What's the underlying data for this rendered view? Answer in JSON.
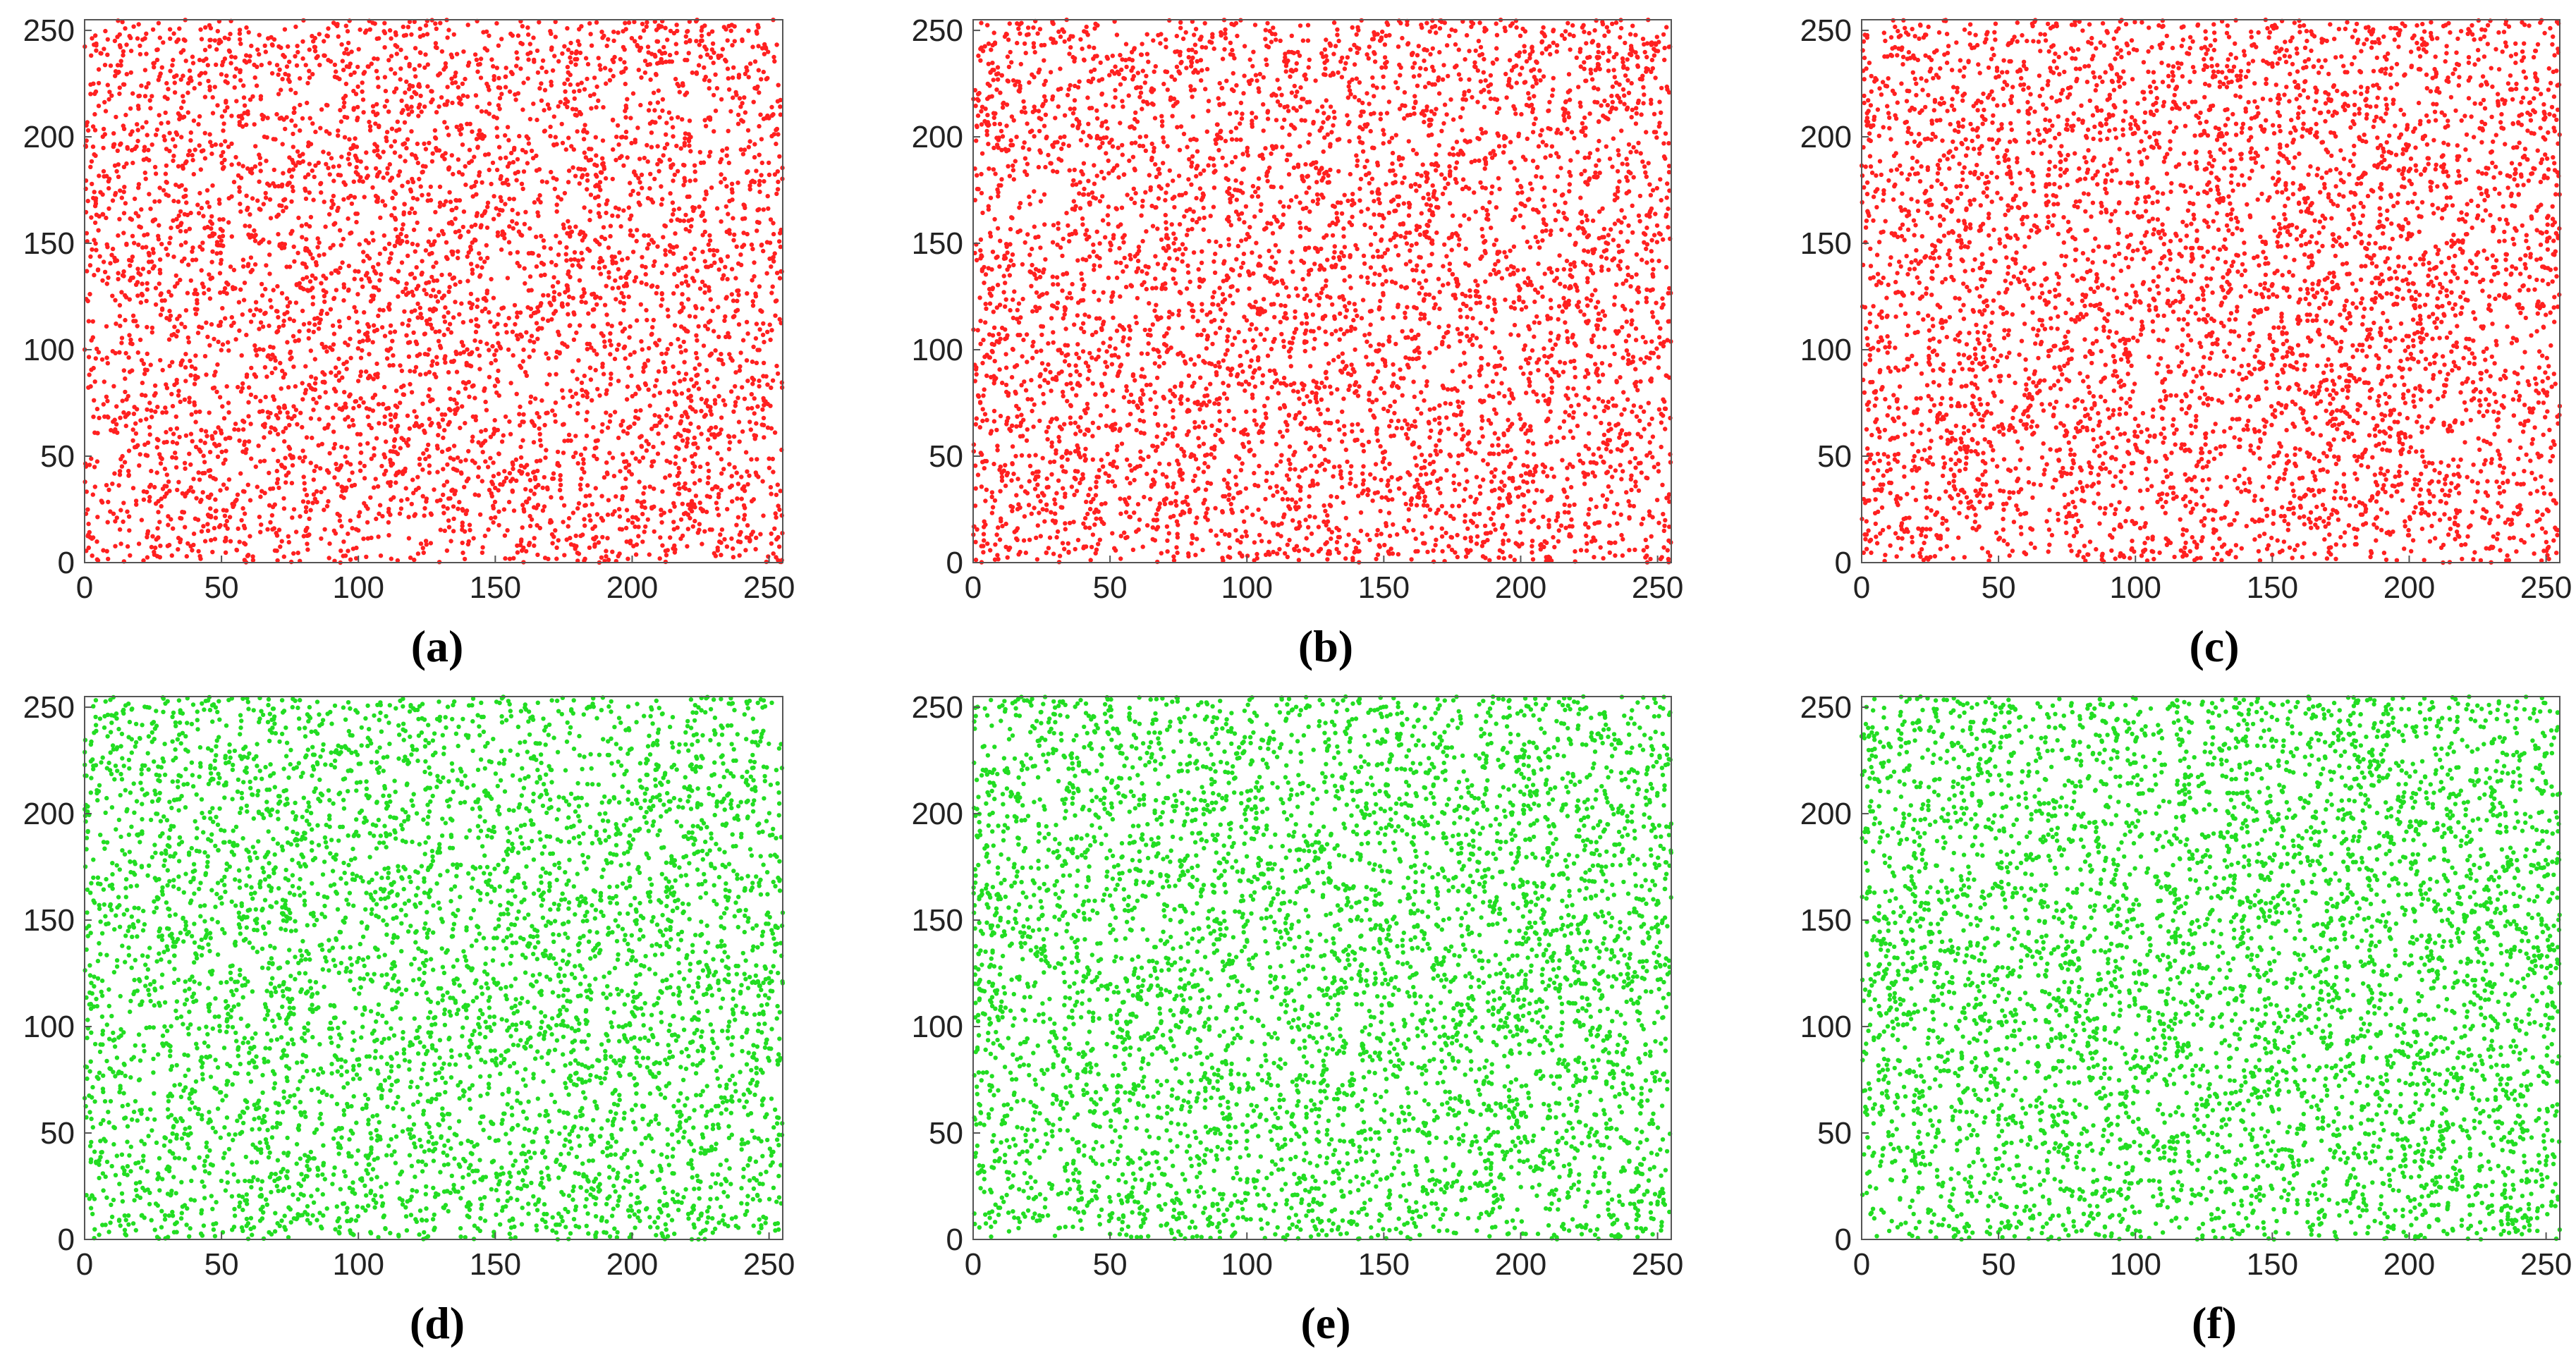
{
  "chart_data": [
    {
      "type": "scatter",
      "panel_label": "(a)",
      "point_color": "#ff2020",
      "n_points": 5000,
      "seed": 11,
      "xlim": [
        0,
        255
      ],
      "ylim": [
        0,
        255
      ],
      "xticks": [
        0,
        50,
        100,
        150,
        200,
        250
      ],
      "yticks": [
        0,
        50,
        100,
        150,
        200,
        250
      ],
      "title": "",
      "xlabel": "",
      "ylabel": "",
      "grid": false
    },
    {
      "type": "scatter",
      "panel_label": "(b)",
      "point_color": "#ff2020",
      "n_points": 5000,
      "seed": 23,
      "xlim": [
        0,
        255
      ],
      "ylim": [
        0,
        255
      ],
      "xticks": [
        0,
        50,
        100,
        150,
        200,
        250
      ],
      "yticks": [
        0,
        50,
        100,
        150,
        200,
        250
      ],
      "title": "",
      "xlabel": "",
      "ylabel": "",
      "grid": false
    },
    {
      "type": "scatter",
      "panel_label": "(c)",
      "point_color": "#ff2020",
      "n_points": 5000,
      "seed": 37,
      "xlim": [
        0,
        255
      ],
      "ylim": [
        0,
        255
      ],
      "xticks": [
        0,
        50,
        100,
        150,
        200,
        250
      ],
      "yticks": [
        0,
        50,
        100,
        150,
        200,
        250
      ],
      "title": "",
      "xlabel": "",
      "ylabel": "",
      "grid": false
    },
    {
      "type": "scatter",
      "panel_label": "(d)",
      "point_color": "#22dd22",
      "n_points": 5000,
      "seed": 41,
      "xlim": [
        0,
        255
      ],
      "ylim": [
        0,
        255
      ],
      "xticks": [
        0,
        50,
        100,
        150,
        200,
        250
      ],
      "yticks": [
        0,
        50,
        100,
        150,
        200,
        250
      ],
      "title": "",
      "xlabel": "",
      "ylabel": "",
      "grid": false
    },
    {
      "type": "scatter",
      "panel_label": "(e)",
      "point_color": "#22dd22",
      "n_points": 5000,
      "seed": 53,
      "xlim": [
        0,
        255
      ],
      "ylim": [
        0,
        255
      ],
      "xticks": [
        0,
        50,
        100,
        150,
        200,
        250
      ],
      "yticks": [
        0,
        50,
        100,
        150,
        200,
        250
      ],
      "title": "",
      "xlabel": "",
      "ylabel": "",
      "grid": false
    },
    {
      "type": "scatter",
      "panel_label": "(f)",
      "point_color": "#22dd22",
      "n_points": 5000,
      "seed": 67,
      "xlim": [
        0,
        255
      ],
      "ylim": [
        0,
        255
      ],
      "xticks": [
        0,
        50,
        100,
        150,
        200,
        250
      ],
      "yticks": [
        0,
        50,
        100,
        150,
        200,
        250
      ],
      "title": "",
      "xlabel": "",
      "ylabel": "",
      "grid": false
    }
  ]
}
